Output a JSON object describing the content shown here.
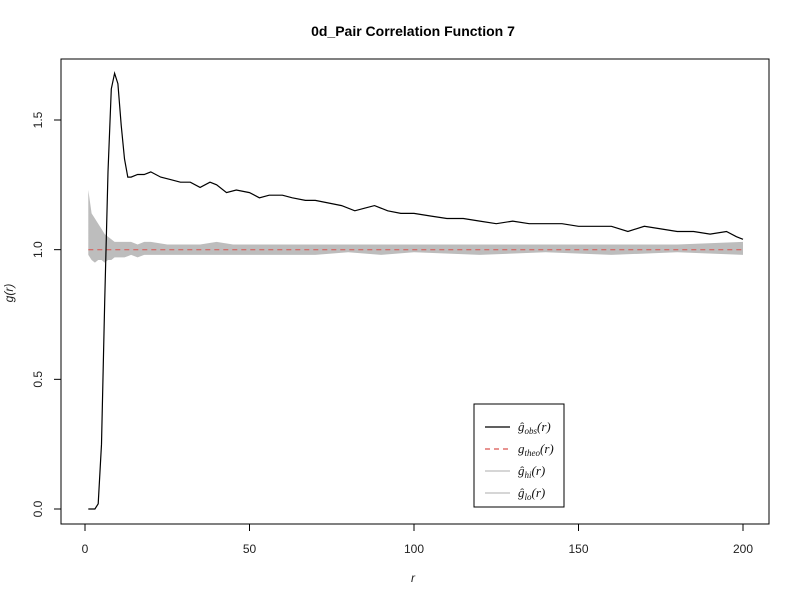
{
  "chart_data": {
    "type": "line",
    "title": "0d_Pair Correlation Function 7",
    "xlabel": "r",
    "ylabel": "g(r)",
    "xlim": [
      0,
      200
    ],
    "ylim": [
      -0.05,
      1.7
    ],
    "x_ticks": [
      0,
      50,
      100,
      150,
      200
    ],
    "y_ticks": [
      0.0,
      0.5,
      1.0,
      1.5
    ],
    "x_tick_labels": [
      "0",
      "50",
      "100",
      "150",
      "200"
    ],
    "y_tick_labels": [
      "0.0",
      "0.5",
      "1.0",
      "1.5"
    ],
    "legend_position": "bottom-right",
    "colors": {
      "obs": "#000000",
      "theo": "#d9534f",
      "envelope": "#bdbdbd"
    },
    "series": [
      {
        "name": "obs",
        "style": "solid",
        "x": [
          1,
          3,
          4,
          5,
          6,
          7,
          8,
          9,
          10,
          11,
          12,
          13,
          14,
          16,
          18,
          20,
          23,
          26,
          29,
          32,
          35,
          38,
          40,
          43,
          46,
          50,
          53,
          56,
          60,
          63,
          67,
          70,
          74,
          78,
          82,
          85,
          88,
          92,
          96,
          100,
          105,
          110,
          115,
          120,
          125,
          130,
          135,
          140,
          145,
          150,
          155,
          160,
          165,
          170,
          175,
          180,
          185,
          190,
          195,
          198,
          200
        ],
        "y": [
          0.0,
          0.0,
          0.02,
          0.25,
          0.8,
          1.3,
          1.62,
          1.68,
          1.64,
          1.48,
          1.35,
          1.28,
          1.28,
          1.29,
          1.29,
          1.3,
          1.28,
          1.27,
          1.26,
          1.26,
          1.24,
          1.26,
          1.25,
          1.22,
          1.23,
          1.22,
          1.2,
          1.21,
          1.21,
          1.2,
          1.19,
          1.19,
          1.18,
          1.17,
          1.15,
          1.16,
          1.17,
          1.15,
          1.14,
          1.14,
          1.13,
          1.12,
          1.12,
          1.11,
          1.1,
          1.11,
          1.1,
          1.1,
          1.1,
          1.09,
          1.09,
          1.09,
          1.07,
          1.09,
          1.08,
          1.07,
          1.07,
          1.06,
          1.07,
          1.05,
          1.04
        ]
      },
      {
        "name": "theo",
        "style": "dashed",
        "x": [
          1,
          200
        ],
        "y": [
          1.0,
          1.0
        ]
      }
    ],
    "envelope": {
      "x": [
        1,
        2,
        3,
        4,
        5,
        6,
        7,
        8,
        9,
        10,
        12,
        14,
        16,
        18,
        20,
        25,
        30,
        35,
        40,
        45,
        50,
        60,
        70,
        80,
        90,
        100,
        120,
        140,
        160,
        180,
        200
      ],
      "hi": [
        1.23,
        1.14,
        1.12,
        1.1,
        1.08,
        1.06,
        1.05,
        1.04,
        1.03,
        1.03,
        1.03,
        1.03,
        1.02,
        1.03,
        1.03,
        1.02,
        1.02,
        1.02,
        1.03,
        1.02,
        1.02,
        1.02,
        1.02,
        1.02,
        1.02,
        1.02,
        1.02,
        1.02,
        1.02,
        1.02,
        1.03
      ],
      "lo": [
        0.98,
        0.96,
        0.95,
        0.96,
        0.96,
        0.95,
        0.96,
        0.96,
        0.97,
        0.97,
        0.97,
        0.98,
        0.97,
        0.98,
        0.98,
        0.98,
        0.98,
        0.98,
        0.98,
        0.98,
        0.98,
        0.98,
        0.98,
        0.99,
        0.98,
        0.99,
        0.98,
        0.99,
        0.98,
        0.99,
        0.98
      ]
    },
    "legend": [
      {
        "key": "obs",
        "base": "ĝ",
        "sub": "obs",
        "arg": "(r)"
      },
      {
        "key": "theo",
        "base": "g",
        "sub": "theo",
        "arg": "(r)"
      },
      {
        "key": "hi",
        "base": "ĝ",
        "sub": "hi",
        "arg": "(r)"
      },
      {
        "key": "lo",
        "base": "ĝ",
        "sub": "lo",
        "arg": "(r)"
      }
    ]
  }
}
